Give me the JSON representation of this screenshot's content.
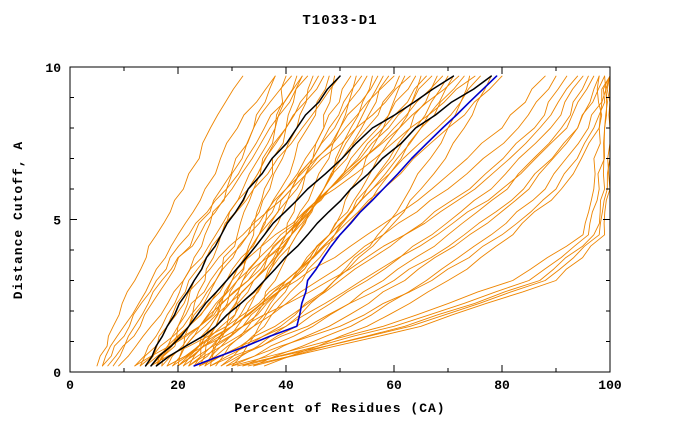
{
  "title": "T1033-D1",
  "background": "#ffffff",
  "chart_data": {
    "type": "line",
    "title": "T1033-D1",
    "xlabel": "Percent of Residues (CA)",
    "ylabel": "Distance Cutoff, A",
    "xlim": [
      0,
      100
    ],
    "ylim": [
      0,
      10
    ],
    "x_major_ticks": [
      0,
      20,
      40,
      60,
      80,
      100
    ],
    "y_major_ticks": [
      0,
      5,
      10
    ],
    "x_minor_step": 10,
    "y_minor_step": 1,
    "grid": false,
    "legend": "none",
    "levels": [
      0.2,
      1.5,
      3.0,
      4.5,
      6.0,
      8.0,
      9.7
    ],
    "series_groups": [
      {
        "name": "model-curves-orange",
        "color": "#EE8500",
        "width": 0.9,
        "jitter": 0.55,
        "curves": [
          [
            12,
            17,
            21,
            25,
            29,
            34,
            38
          ],
          [
            16,
            22,
            27,
            31,
            34,
            38,
            40
          ],
          [
            20,
            22,
            25,
            28,
            32,
            38,
            42
          ],
          [
            24,
            27,
            31,
            34,
            36,
            40,
            43
          ],
          [
            13,
            21,
            27,
            33,
            37,
            42,
            45
          ],
          [
            17,
            20,
            23,
            28,
            33,
            40,
            46
          ],
          [
            21,
            26,
            30,
            35,
            39,
            44,
            48
          ],
          [
            25,
            31,
            36,
            40,
            43,
            47,
            49
          ],
          [
            14,
            18,
            22,
            28,
            34,
            43,
            50
          ],
          [
            18,
            24,
            30,
            35,
            40,
            47,
            52
          ],
          [
            22,
            30,
            36,
            41,
            45,
            50,
            53
          ],
          [
            26,
            29,
            32,
            37,
            41,
            48,
            54
          ],
          [
            15,
            22,
            29,
            35,
            41,
            49,
            55
          ],
          [
            19,
            28,
            36,
            42,
            47,
            52,
            56
          ],
          [
            23,
            26,
            30,
            36,
            42,
            50,
            57
          ],
          [
            27,
            33,
            38,
            42,
            47,
            53,
            58
          ],
          [
            12,
            24,
            33,
            41,
            47,
            54,
            59
          ],
          [
            16,
            20,
            26,
            33,
            40,
            51,
            60
          ],
          [
            20,
            27,
            34,
            41,
            47,
            55,
            61
          ],
          [
            24,
            34,
            41,
            48,
            52,
            58,
            62
          ],
          [
            13,
            18,
            24,
            32,
            41,
            53,
            63
          ],
          [
            17,
            25,
            34,
            40,
            48,
            57,
            64
          ],
          [
            21,
            32,
            41,
            48,
            54,
            61,
            65
          ],
          [
            25,
            29,
            34,
            41,
            48,
            58,
            66
          ],
          [
            14,
            24,
            33,
            40,
            48,
            59,
            67
          ],
          [
            18,
            30,
            41,
            49,
            55,
            63,
            68
          ],
          [
            22,
            27,
            32,
            40,
            48,
            60,
            69
          ],
          [
            28,
            36,
            43,
            49,
            55,
            64,
            70
          ],
          [
            15,
            29,
            40,
            50,
            57,
            65,
            71
          ],
          [
            19,
            24,
            31,
            39,
            48,
            61,
            72
          ],
          [
            23,
            32,
            40,
            48,
            56,
            65,
            73
          ],
          [
            29,
            40,
            49,
            57,
            63,
            70,
            74
          ],
          [
            16,
            22,
            29,
            38,
            49,
            63,
            75
          ],
          [
            20,
            30,
            40,
            48,
            56,
            68,
            76
          ],
          [
            26,
            39,
            49,
            58,
            65,
            73,
            78
          ],
          [
            30,
            35,
            41,
            49,
            58,
            70,
            80
          ],
          [
            5,
            8,
            12,
            16,
            21,
            26,
            32
          ],
          [
            6,
            10,
            15,
            20,
            25,
            31,
            38
          ],
          [
            7,
            13,
            18,
            23,
            28,
            34,
            41
          ],
          [
            8,
            12,
            17,
            24,
            30,
            37,
            44
          ],
          [
            9,
            15,
            21,
            27,
            33,
            40,
            47
          ],
          [
            6,
            11,
            16,
            22,
            29,
            36,
            43
          ],
          [
            20,
            30,
            42,
            55,
            67,
            80,
            88
          ],
          [
            22,
            34,
            46,
            58,
            70,
            83,
            90
          ],
          [
            25,
            38,
            50,
            62,
            74,
            86,
            92
          ],
          [
            18,
            32,
            48,
            62,
            75,
            87,
            94
          ],
          [
            28,
            42,
            55,
            67,
            78,
            89,
            95
          ],
          [
            30,
            45,
            58,
            70,
            81,
            91,
            96
          ],
          [
            24,
            40,
            54,
            68,
            80,
            92,
            97
          ],
          [
            32,
            48,
            62,
            74,
            85,
            94,
            98
          ],
          [
            26,
            44,
            60,
            73,
            84,
            94,
            99
          ],
          [
            34,
            52,
            66,
            78,
            88,
            96,
            100
          ],
          [
            36,
            55,
            70,
            82,
            91,
            98,
            100
          ],
          [
            29,
            50,
            67,
            80,
            90,
            97,
            100
          ],
          [
            30,
            58,
            82,
            95,
            97,
            98,
            98
          ],
          [
            31,
            60,
            85,
            96,
            98,
            99,
            99
          ],
          [
            32,
            62,
            87,
            97,
            99,
            99,
            100
          ],
          [
            33,
            63,
            88,
            98,
            99.5,
            100,
            100
          ],
          [
            34,
            65,
            90,
            99,
            100,
            100,
            100
          ]
        ]
      },
      {
        "name": "highlight-curves-black",
        "color": "#000000",
        "width": 1.5,
        "jitter": 0.4,
        "curves": [
          [
            14,
            18,
            23,
            28,
            33,
            42,
            50
          ],
          [
            15,
            22,
            29,
            36,
            44,
            56,
            71
          ],
          [
            16,
            27,
            36,
            44,
            52,
            64,
            78
          ]
        ]
      },
      {
        "name": "highlight-curve-blue",
        "color": "#0000CC",
        "width": 1.6,
        "jitter": 0.3,
        "curves": [
          [
            23,
            42,
            44,
            50,
            58,
            69,
            79
          ]
        ]
      }
    ]
  }
}
